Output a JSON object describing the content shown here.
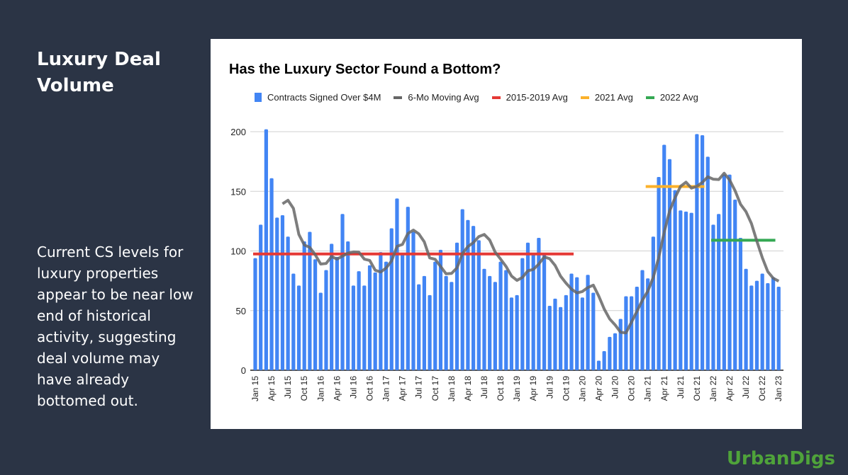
{
  "slide": {
    "title": "Luxury Deal Volume",
    "body": "Current CS levels for luxury properties appear to be near low end of historical activity, suggesting deal volume may have already bottomed out.",
    "logo": "UrbanDigs"
  },
  "chart_data": {
    "type": "bar",
    "title": "Has the Luxury Sector Found a Bottom?",
    "xlabel": "",
    "ylabel": "",
    "ylim": [
      0,
      200
    ],
    "yticks": [
      0,
      50,
      100,
      150,
      200
    ],
    "grid": true,
    "legend_position": "top",
    "start_month": "Jan 15",
    "xtick_labels": [
      "Jan 15",
      "Apr 15",
      "Jul 15",
      "Oct 15",
      "Jan 16",
      "Apr 16",
      "Jul 16",
      "Oct 16",
      "Jan 17",
      "Apr 17",
      "Jul 17",
      "Oct 17",
      "Jan 18",
      "Apr 18",
      "Jul 18",
      "Oct 18",
      "Jan 19",
      "Apr 19",
      "Jul 19",
      "Oct 19",
      "Jan 20",
      "Apr 20",
      "Jul 20",
      "Oct 20",
      "Jan 21",
      "Apr 21",
      "Jul 21",
      "Oct 21",
      "Jan 22",
      "Apr 22",
      "Jul 22",
      "Oct 22",
      "Jan 23"
    ],
    "series": [
      {
        "name": "Contracts Signed Over $4M",
        "kind": "bar",
        "color": "#4285f4",
        "values": [
          94,
          122,
          202,
          161,
          128,
          130,
          112,
          81,
          71,
          108,
          116,
          93,
          65,
          84,
          106,
          95,
          131,
          108,
          71,
          83,
          71,
          88,
          82,
          99,
          91,
          119,
          144,
          98,
          137,
          116,
          72,
          79,
          63,
          91,
          101,
          79,
          74,
          107,
          135,
          126,
          121,
          109,
          85,
          79,
          74,
          91,
          84,
          61,
          63,
          94,
          107,
          98,
          111,
          97,
          54,
          60,
          53,
          63,
          81,
          78,
          61,
          80,
          65,
          8,
          16,
          28,
          31,
          43,
          62,
          62,
          70,
          84,
          77,
          112,
          162,
          189,
          177,
          151,
          134,
          133,
          132,
          198,
          197,
          179,
          122,
          131,
          164,
          164,
          143,
          111,
          85,
          71,
          75,
          81,
          73,
          78,
          70
        ]
      },
      {
        "name": "6-Mo Moving Avg",
        "kind": "moving_average",
        "window": 6,
        "color": "#666666"
      },
      {
        "name": "2015-2019 Avg",
        "kind": "hline",
        "value": 97.5,
        "from": "Jan 15",
        "to": "Nov 19",
        "color": "#e53935"
      },
      {
        "name": "2021 Avg",
        "kind": "hline",
        "value": 154,
        "from": "Jan 21",
        "to": "Nov 21",
        "color": "#fbb12b"
      },
      {
        "name": "2022 Avg",
        "kind": "hline",
        "value": 109,
        "from": "Jan 22",
        "to": "Dec 22",
        "color": "#34a853"
      }
    ]
  }
}
